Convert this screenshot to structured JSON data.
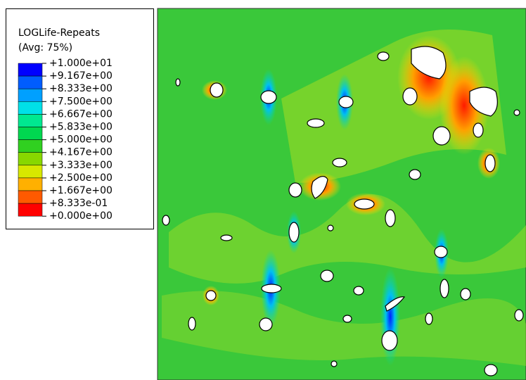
{
  "legend": {
    "title": "LOGLife-Repeats",
    "subtitle": "(Avg: 75%)",
    "labels": [
      "+1.000e+01",
      "+9.167e+00",
      "+8.333e+00",
      "+7.500e+00",
      "+6.667e+00",
      "+5.833e+00",
      "+5.000e+00",
      "+4.167e+00",
      "+3.333e+00",
      "+2.500e+00",
      "+1.667e+00",
      "+8.333e-01",
      "+0.000e+00"
    ],
    "colors": [
      "#0000ff",
      "#005dff",
      "#00a0ff",
      "#00e0e8",
      "#00e890",
      "#00d850",
      "#30d020",
      "#88d800",
      "#d8e800",
      "#ffb000",
      "#ff5a00",
      "#ff0000"
    ]
  }
}
